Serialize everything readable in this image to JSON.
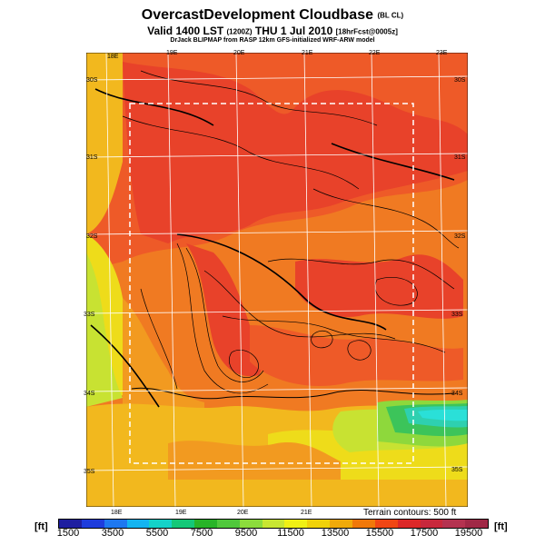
{
  "title": "OvercastDevelopment Cloudbase",
  "title_tag": "(BL CL)",
  "subtitle": "Valid 1400 LST",
  "subtitle_code": "(1200Z)",
  "subtitle_date": "THU 1 Jul 2010",
  "subtitle_fcst": "[18hrFcst@0005z]",
  "credit": "DrJack BLIPMAP from RASP 12km GFS-initialized WRF-ARW model",
  "terrain_note": "Terrain contours: 500 ft",
  "unit_left": "[ft]",
  "unit_right": "[ft]",
  "map": {
    "top_lon_labels": [
      "18E",
      "19E",
      "20E",
      "21E",
      "22E",
      "23E"
    ],
    "bottom_lon_labels": [
      "18E",
      "19E",
      "20E",
      "21E"
    ],
    "left_lat_labels": [
      "30S",
      "31S",
      "32S",
      "33S",
      "34S",
      "35S"
    ],
    "right_lat_labels": [
      "30S",
      "31S",
      "32S",
      "33S",
      "34S",
      "35S"
    ]
  },
  "colorbar": {
    "ticks": [
      "1500",
      "3500",
      "5500",
      "7500",
      "9500",
      "11500",
      "13500",
      "15500",
      "17500",
      "19500"
    ],
    "colors": [
      "#1e1ea0",
      "#1e3cdc",
      "#1e78f0",
      "#14b4f0",
      "#14d2c8",
      "#14c878",
      "#28b428",
      "#50c83c",
      "#8cdc3c",
      "#c8e632",
      "#f0f014",
      "#f0d20a",
      "#f0aa0a",
      "#f0780a",
      "#f04614",
      "#dc2828",
      "#c8283c",
      "#b43250",
      "#a02846"
    ]
  },
  "field_colors": {
    "red": "#e8422a",
    "redorange": "#ee5a28",
    "orange": "#f07a22",
    "lightorange": "#f29a20",
    "yelloworange": "#f2b81e",
    "yellow": "#eedc1a",
    "yellowgreen": "#c8e232",
    "green": "#8ed83c",
    "brightgreen": "#3cc45a",
    "teal": "#2ed0b0",
    "cyan": "#2ae0d8"
  }
}
